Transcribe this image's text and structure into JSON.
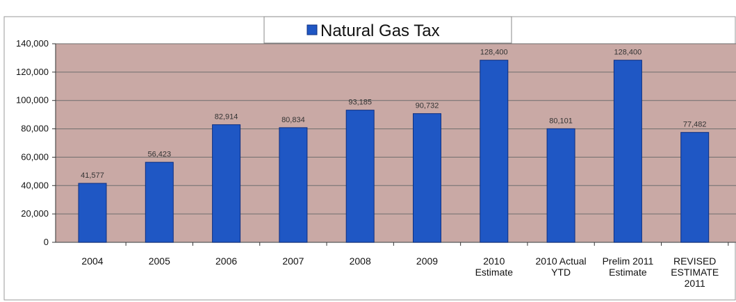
{
  "chart_data": {
    "type": "bar",
    "categories": [
      [
        "2004"
      ],
      [
        "2005"
      ],
      [
        "2006"
      ],
      [
        "2007"
      ],
      [
        "2008"
      ],
      [
        "2009"
      ],
      [
        "2010",
        "Estimate"
      ],
      [
        "2010 Actual",
        "YTD"
      ],
      [
        "Prelim 2011",
        "Estimate"
      ],
      [
        "REVISED",
        "ESTIMATE",
        "2011"
      ]
    ],
    "series": [
      {
        "name": "Natural Gas Tax",
        "values": [
          41577,
          56423,
          82914,
          80834,
          93185,
          90732,
          128400,
          80101,
          128400,
          77482
        ]
      }
    ],
    "value_labels": [
      "41,577",
      "56,423",
      "82,914",
      "80,834",
      "93,185",
      "90,732",
      "128,400",
      "80,101",
      "128,400",
      "77,482"
    ],
    "yticks": [
      "0",
      "20,000",
      "40,000",
      "60,000",
      "80,000",
      "100,000",
      "120,000",
      "140,000"
    ],
    "ylim": [
      0,
      140000
    ],
    "grid": true,
    "legend_position": "top-center",
    "colors": {
      "bar": "#1f57c4",
      "bar_edge": "#0d2f80",
      "plot_bg": "#c9a9a5",
      "grid": "#6e6e6e",
      "border": "#9a9a9a"
    }
  }
}
